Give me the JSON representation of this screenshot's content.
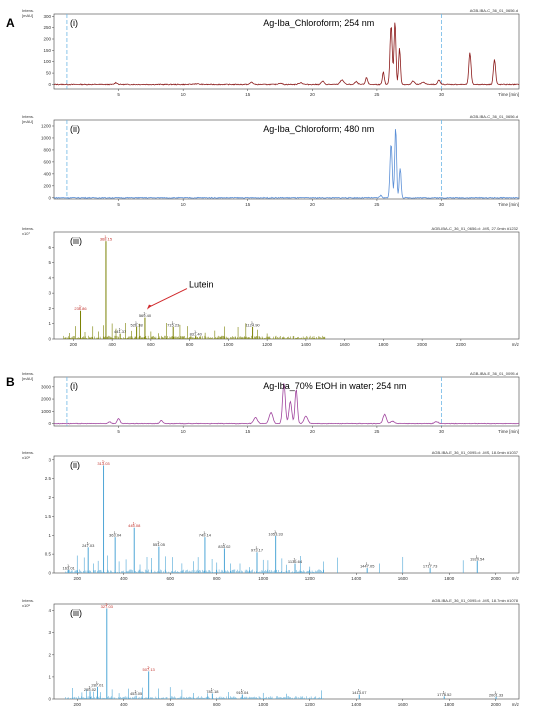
{
  "sections": [
    {
      "letter": "A"
    },
    {
      "letter": "B"
    }
  ],
  "chart_data": [
    {
      "id": "A-i",
      "type": "line",
      "section": "A",
      "roman": "(i)",
      "title": "Ag-Iba_Chloroform; 254 nm",
      "color": "#8B1A1A",
      "header": "mAU",
      "ylabel": "Intens.\n[mAU]",
      "xlabel": "Time [min]",
      "file_label": "AGB-IBA-C_36_01_0656.d",
      "xlim": [
        0,
        36
      ],
      "ylim": [
        -20,
        310
      ],
      "yticks": [
        0,
        50,
        100,
        150,
        200,
        250,
        300
      ],
      "xticks": [
        5,
        10,
        15,
        20,
        25,
        30
      ],
      "markers": [
        1,
        30
      ],
      "peaks": [
        {
          "x": 4.8,
          "h": 8,
          "w": 0.15
        },
        {
          "x": 11,
          "h": 3,
          "w": 0.3
        },
        {
          "x": 15.3,
          "h": 10,
          "w": 0.15
        },
        {
          "x": 17.5,
          "h": 6,
          "w": 0.2
        },
        {
          "x": 19.1,
          "h": 8,
          "w": 0.2
        },
        {
          "x": 20.8,
          "h": 14,
          "w": 0.15
        },
        {
          "x": 22.3,
          "h": 20,
          "w": 0.2
        },
        {
          "x": 23.4,
          "h": 12,
          "w": 0.15
        },
        {
          "x": 24.2,
          "h": 30,
          "w": 0.12
        },
        {
          "x": 25.5,
          "h": 55,
          "w": 0.1
        },
        {
          "x": 26.1,
          "h": 260,
          "w": 0.12
        },
        {
          "x": 26.4,
          "h": 280,
          "w": 0.1
        },
        {
          "x": 26.75,
          "h": 160,
          "w": 0.1
        },
        {
          "x": 27.8,
          "h": 15,
          "w": 0.15
        },
        {
          "x": 28.6,
          "h": 10,
          "w": 0.2
        },
        {
          "x": 29.8,
          "h": 18,
          "w": 0.15
        },
        {
          "x": 32.2,
          "h": 140,
          "w": 0.12
        },
        {
          "x": 34.1,
          "h": 110,
          "w": 0.12
        }
      ]
    },
    {
      "id": "A-ii",
      "type": "line",
      "section": "A",
      "roman": "(ii)",
      "title": "Ag-Iba_Chloroform; 480 nm",
      "color": "#5B8FD6",
      "ylabel": "Intens.\n[mAU]",
      "xlabel": "Time [min]",
      "file_label": "AGB-IBA-C_36_01_0656.d",
      "xlim": [
        0,
        36
      ],
      "ylim": [
        -20,
        1300
      ],
      "yticks": [
        0,
        200,
        400,
        600,
        800,
        1000,
        1200
      ],
      "xticks": [
        5,
        10,
        15,
        20,
        25,
        30
      ],
      "markers": [
        1,
        30
      ],
      "peaks": [
        {
          "x": 25.3,
          "h": 40,
          "w": 0.12
        },
        {
          "x": 26.1,
          "h": 900,
          "w": 0.12
        },
        {
          "x": 26.45,
          "h": 1180,
          "w": 0.1
        },
        {
          "x": 26.8,
          "h": 500,
          "w": 0.1
        }
      ]
    },
    {
      "id": "A-iii",
      "type": "bar",
      "section": "A",
      "roman": "(iii)",
      "color": "#7A8000",
      "ylabel": "Intens.\nx10⁷",
      "xlabel": "m/z",
      "file_label": "AGB-IBA-C_36_01_0656.d: -MS, 27.0min #1232",
      "xlim": [
        100,
        2500
      ],
      "ylim": [
        0,
        7
      ],
      "yticks": [
        0,
        1,
        2,
        3,
        4,
        5,
        6
      ],
      "xticks": [
        200,
        400,
        600,
        800,
        1000,
        1200,
        1400,
        1600,
        1800,
        2000,
        2200
      ],
      "annotation": "Lutein",
      "peaks": [
        {
          "x": 236.86,
          "y": 1.85,
          "label": "236.86",
          "red": true
        },
        {
          "x": 368.15,
          "y": 6.4,
          "label": "368.15",
          "red": true
        },
        {
          "x": 441.37,
          "y": 0.35,
          "label": "441.37"
        },
        {
          "x": 526.38,
          "y": 0.8,
          "label": "526.38"
        },
        {
          "x": 569.4,
          "y": 1.4,
          "label": "569.40"
        },
        {
          "x": 715.23,
          "y": 0.8,
          "label": "715.23"
        },
        {
          "x": 831.4,
          "y": 0.2,
          "label": "831.40"
        },
        {
          "x": 1124.9,
          "y": 0.8,
          "label": "1124.90"
        }
      ],
      "minor": [
        180,
        210,
        260,
        300,
        330,
        355,
        400,
        420,
        470,
        500,
        540,
        600,
        640,
        680,
        750,
        790,
        880,
        930,
        980,
        1050,
        1090,
        1150,
        1200
      ]
    },
    {
      "id": "B-i",
      "type": "line",
      "section": "B",
      "roman": "(i)",
      "title": "Ag-Iba_70% EtOH in water; 254 nm",
      "color": "#A0459E",
      "ylabel": "Intens.\n[mAU]",
      "xlabel": "Time [min]",
      "file_label": "AGB-IBA-E_36_01_0095.d",
      "xlim": [
        0,
        36
      ],
      "ylim": [
        -200,
        3800
      ],
      "yticks": [
        0,
        1000,
        2000,
        3000
      ],
      "xticks": [
        5,
        10,
        15,
        20,
        25,
        30
      ],
      "markers": [
        1,
        30
      ],
      "peaks": [
        {
          "x": 4.3,
          "h": 150,
          "w": 0.15
        },
        {
          "x": 5,
          "h": 400,
          "w": 0.15
        },
        {
          "x": 8.3,
          "h": 250,
          "w": 0.15
        },
        {
          "x": 15.6,
          "h": 500,
          "w": 0.2
        },
        {
          "x": 16.8,
          "h": 900,
          "w": 0.2
        },
        {
          "x": 17.8,
          "h": 3300,
          "w": 0.15
        },
        {
          "x": 18.3,
          "h": 1800,
          "w": 0.15
        },
        {
          "x": 18.75,
          "h": 2800,
          "w": 0.13
        },
        {
          "x": 19.5,
          "h": 600,
          "w": 0.2
        },
        {
          "x": 25.6,
          "h": 750,
          "w": 0.18
        },
        {
          "x": 26.2,
          "h": 200,
          "w": 0.2
        },
        {
          "x": 29.6,
          "h": 150,
          "w": 0.2
        }
      ]
    },
    {
      "id": "B-ii",
      "type": "bar",
      "section": "B",
      "roman": "(ii)",
      "color": "#4EA6D6",
      "ylabel": "Intens.\nx10⁵",
      "xlabel": "m/z",
      "file_label": "AGB-IBA-E_36_01_0095.d: -MS, 18.0min #1037",
      "xlim": [
        100,
        2100
      ],
      "ylim": [
        0,
        3.1
      ],
      "yticks": [
        0,
        0.5,
        1,
        1.5,
        2,
        2.5,
        3
      ],
      "xticks": [
        200,
        400,
        600,
        800,
        1000,
        1200,
        1400,
        1600,
        1800,
        2000
      ],
      "peaks": [
        {
          "x": 163.01,
          "y": 0.08,
          "label": "163.01"
        },
        {
          "x": 247.03,
          "y": 0.68,
          "label": "247.03"
        },
        {
          "x": 313.03,
          "y": 2.85,
          "label": "313.03",
          "red": true
        },
        {
          "x": 363.04,
          "y": 0.95,
          "label": "363.04"
        },
        {
          "x": 445.08,
          "y": 1.2,
          "label": "445.08",
          "red": true
        },
        {
          "x": 551.05,
          "y": 0.7,
          "label": "551.05"
        },
        {
          "x": 749.14,
          "y": 0.95,
          "label": "749.14"
        },
        {
          "x": 833.02,
          "y": 0.65,
          "label": "833.02"
        },
        {
          "x": 973.17,
          "y": 0.55,
          "label": "973.17"
        },
        {
          "x": 1053.33,
          "y": 0.98,
          "label": "1053.33"
        },
        {
          "x": 1136.64,
          "y": 0.25,
          "label": "1136.64"
        },
        {
          "x": 1447.05,
          "y": 0.13,
          "label": "1447.05"
        },
        {
          "x": 1717.73,
          "y": 0.13,
          "label": "1717.73"
        },
        {
          "x": 1920.54,
          "y": 0.32,
          "label": "1920.54"
        }
      ],
      "minor": [
        200,
        230,
        270,
        290,
        330,
        380,
        410,
        470,
        500,
        520,
        580,
        610,
        650,
        700,
        720,
        780,
        800,
        860,
        900,
        940,
        1000,
        1020,
        1080,
        1100,
        1160,
        1200,
        1260,
        1320,
        1500,
        1600,
        1860
      ]
    },
    {
      "id": "B-iii",
      "type": "bar",
      "section": "B",
      "roman": "(iii)",
      "color": "#4EA6D6",
      "ylabel": "Intens.\nx10⁵",
      "xlabel": "m/z",
      "file_label": "AGB-IBA-E_36_01_0095.d: -MS, 18.7min #1078",
      "xlim": [
        100,
        2100
      ],
      "ylim": [
        0,
        4.3
      ],
      "yticks": [
        0,
        1,
        2,
        3,
        4
      ],
      "xticks": [
        200,
        400,
        600,
        800,
        1000,
        1200,
        1400,
        1600,
        1800,
        2000
      ],
      "peaks": [
        {
          "x": 255.02,
          "y": 0.35,
          "label": "255.02"
        },
        {
          "x": 287.01,
          "y": 0.55,
          "label": "287.01"
        },
        {
          "x": 327.03,
          "y": 4.1,
          "label": "327.03",
          "red": true
        },
        {
          "x": 453.05,
          "y": 0.15,
          "label": "453.05"
        },
        {
          "x": 507.13,
          "y": 1.25,
          "label": "507.13",
          "red": true
        },
        {
          "x": 781.18,
          "y": 0.25,
          "label": "781.18"
        },
        {
          "x": 910.04,
          "y": 0.2,
          "label": "910.04"
        },
        {
          "x": 1413.07,
          "y": 0.2,
          "label": "1413.07"
        },
        {
          "x": 1778.52,
          "y": 0.12,
          "label": "1778.52"
        },
        {
          "x": 2001.33,
          "y": 0.1,
          "label": "2001.33"
        }
      ],
      "minor": [
        180,
        220,
        240,
        270,
        300,
        350,
        380,
        420,
        480,
        550,
        600,
        650,
        700,
        760,
        850,
        1000,
        1100,
        1250
      ]
    }
  ]
}
